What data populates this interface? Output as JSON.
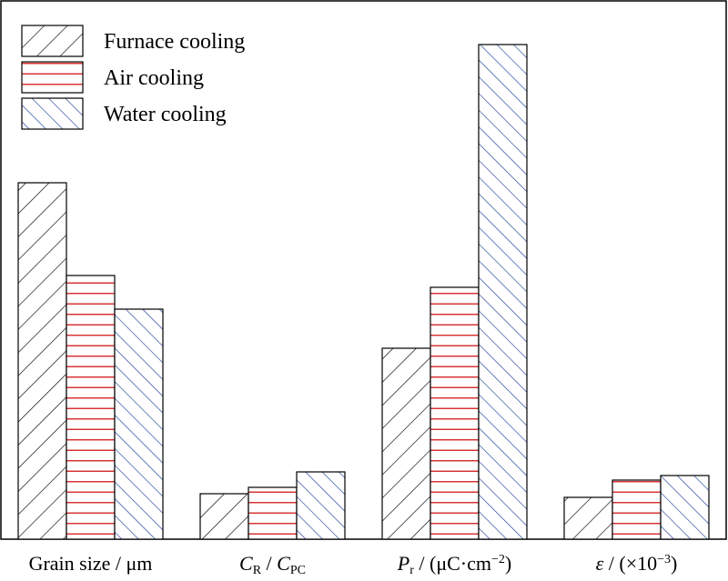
{
  "chart_data": {
    "type": "bar",
    "categories": [
      "Grain size / μm",
      "C_R / C_PC",
      "P_r / (μC·cm⁻²)",
      "ε / (×10⁻³)"
    ],
    "category_labels": [
      {
        "main": "Grain size / μm"
      },
      {
        "parts": [
          {
            "text": "C",
            "italic": true
          },
          {
            "text": "R",
            "sub": true
          },
          {
            "text": " / "
          },
          {
            "text": "C",
            "italic": true
          },
          {
            "text": "PC",
            "sub": true
          }
        ]
      },
      {
        "parts": [
          {
            "text": "P",
            "italic": true
          },
          {
            "text": "r",
            "sub": true
          },
          {
            "text": " / (μC·cm"
          },
          {
            "text": "−2",
            "sup": true
          },
          {
            "text": ")"
          }
        ]
      },
      {
        "parts": [
          {
            "text": "ε",
            "italic": true
          },
          {
            "text": " / (×10"
          },
          {
            "text": "−3",
            "sup": true
          },
          {
            "text": ")"
          }
        ]
      }
    ],
    "series": [
      {
        "name": "Furnace cooling",
        "color": "#000000",
        "pattern": "forward-diagonal",
        "values": [
          392,
          50,
          210,
          46
        ]
      },
      {
        "name": "Air cooling",
        "color": "#d62728",
        "pattern": "horizontal",
        "values": [
          290,
          57,
          277,
          65
        ]
      },
      {
        "name": "Water cooling",
        "color": "#1f3f99",
        "pattern": "backward-diagonal",
        "values": [
          253,
          74,
          544,
          70
        ]
      }
    ],
    "ylim": [
      0,
      590
    ],
    "xlabel": "",
    "ylabel": "",
    "legend_position": "top-left",
    "grid": false,
    "y_ticks_shown": false
  }
}
